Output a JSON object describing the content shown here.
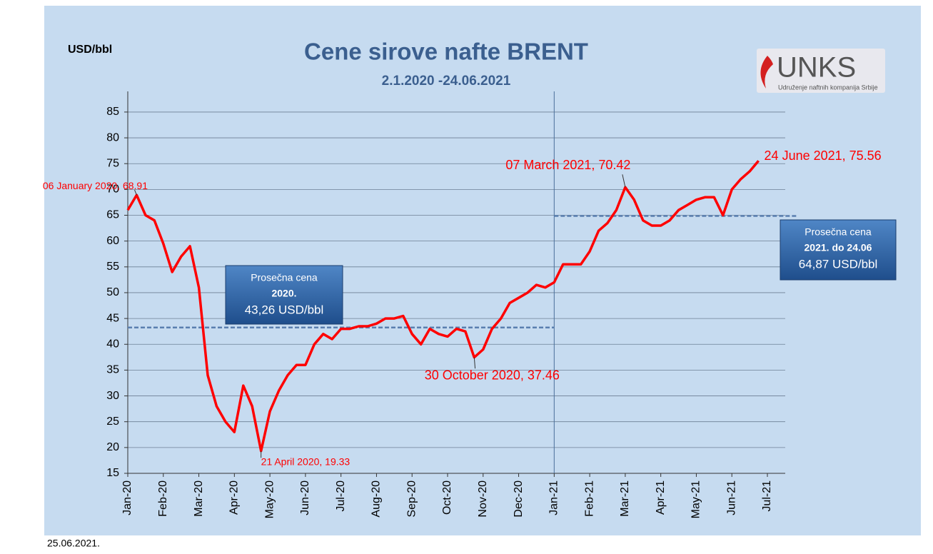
{
  "chart_data": {
    "type": "line",
    "title": "Cene sirove nafte BRENT",
    "subtitle": "2.1.2020 -24.06.2021",
    "y_label": "USD/bbl",
    "logo": {
      "name": "UNKS",
      "tagline": "Udruženje naftnih kompanija Srbije"
    },
    "footer": "25.06.2021.",
    "categories": [
      "Jan-20",
      null,
      null,
      null,
      "Feb-20",
      null,
      null,
      null,
      "Mar-20",
      null,
      null,
      null,
      "Apr-20",
      null,
      null,
      null,
      "May-20",
      null,
      null,
      null,
      "Jun-20",
      null,
      null,
      null,
      "Jul-20",
      null,
      null,
      null,
      "Aug-20",
      null,
      null,
      null,
      "Sep-20",
      null,
      null,
      null,
      "Oct-20",
      null,
      null,
      null,
      "Nov-20",
      null,
      null,
      null,
      "Dec-20",
      null,
      null,
      null,
      "Jan-21",
      null,
      null,
      null,
      "Feb-21",
      null,
      null,
      null,
      "Mar-21",
      null,
      null,
      null,
      "Apr-21",
      null,
      null,
      null,
      "May-21",
      null,
      null,
      null,
      "Jun-21",
      null,
      null,
      null,
      "Jul-21"
    ],
    "series": [
      {
        "name": "BRENT",
        "color": "#ff0000",
        "values": [
          66,
          68.91,
          65,
          64,
          59.5,
          54,
          57,
          59,
          51,
          34,
          28,
          25,
          23,
          32,
          28,
          19.33,
          27,
          31,
          34,
          36,
          36,
          40,
          42,
          41,
          43,
          43,
          43.5,
          43.5,
          44,
          45,
          45,
          45.5,
          42,
          40,
          43,
          42,
          41.5,
          43,
          42.5,
          37.46,
          39,
          43,
          45,
          48,
          49,
          50,
          51.5,
          51,
          52,
          55.5,
          55.5,
          55.5,
          58,
          62,
          63.5,
          66,
          70.42,
          68,
          64,
          63,
          63,
          64,
          66,
          67,
          68,
          68.5,
          68.5,
          65,
          70,
          72,
          73.5,
          75.56,
          null
        ],
        "value_labels": [
          null,
          "06 January 2020, 68.91",
          null,
          null,
          null,
          null,
          null,
          null,
          null,
          null,
          null,
          null,
          null,
          null,
          null,
          "21 April 2020, 19.33",
          null,
          null,
          null,
          null,
          null,
          null,
          null,
          null,
          null,
          null,
          null,
          null,
          null,
          null,
          null,
          null,
          null,
          null,
          null,
          null,
          null,
          null,
          null,
          "30 October 2020, 37.46",
          null,
          null,
          null,
          null,
          null,
          null,
          null,
          null,
          null,
          null,
          null,
          null,
          null,
          null,
          null,
          null,
          "07 March 2021, 70.42",
          null,
          null,
          null,
          null,
          null,
          null,
          null,
          null,
          null,
          null,
          null,
          null,
          null,
          null,
          "24 June 2021, 75.56",
          null
        ]
      }
    ],
    "averages": [
      {
        "title": "Prosečna cena",
        "period": "2020.",
        "value": 43.26,
        "value_label": "43,26 USD/bbl"
      },
      {
        "title": "Prosečna cena",
        "period": "2021. do 24.06",
        "value": 64.87,
        "value_label": "64,87 USD/bbl"
      }
    ],
    "ylim": [
      15,
      89
    ],
    "yticks": [
      15,
      20,
      25,
      30,
      35,
      40,
      45,
      50,
      55,
      60,
      65,
      70,
      75,
      80,
      85
    ],
    "grid": true
  }
}
